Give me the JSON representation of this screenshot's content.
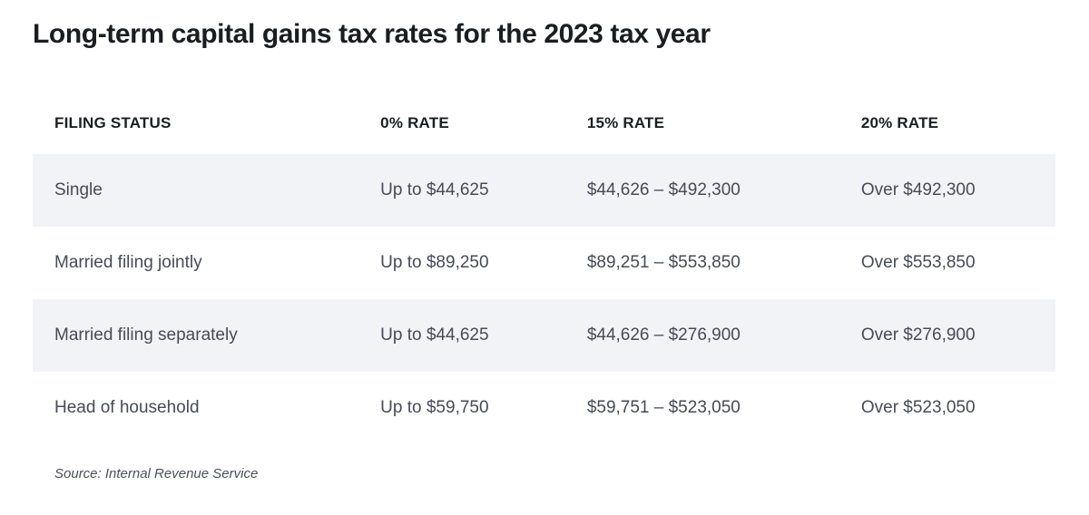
{
  "chart_data": {
    "type": "table",
    "title": "Long-term capital gains tax rates for the 2023 tax year",
    "columns": [
      "FILING STATUS",
      "0% RATE",
      "15% RATE",
      "20% RATE"
    ],
    "rows": [
      [
        "Single",
        "Up to $44,625",
        "$44,626 – $492,300",
        "Over $492,300"
      ],
      [
        "Married filing jointly",
        "Up to $89,250",
        "$89,251 – $553,850",
        "Over $553,850"
      ],
      [
        "Married filing separately",
        "Up to $44,625",
        "$44,626 – $276,900",
        "Over $276,900"
      ],
      [
        "Head of household",
        "Up to $59,750",
        "$59,751 – $523,050",
        "Over $523,050"
      ]
    ],
    "source": "Source: Internal Revenue Service",
    "layout": {
      "stripe_rows": [
        0,
        2
      ],
      "stripe_color": "#f2f3f7",
      "title_color": "#1b1d21",
      "header_text_color": "#1c1e22",
      "body_text_color": "#474a57",
      "source_text_color": "#4c4f58",
      "background": "#ffffff"
    }
  }
}
